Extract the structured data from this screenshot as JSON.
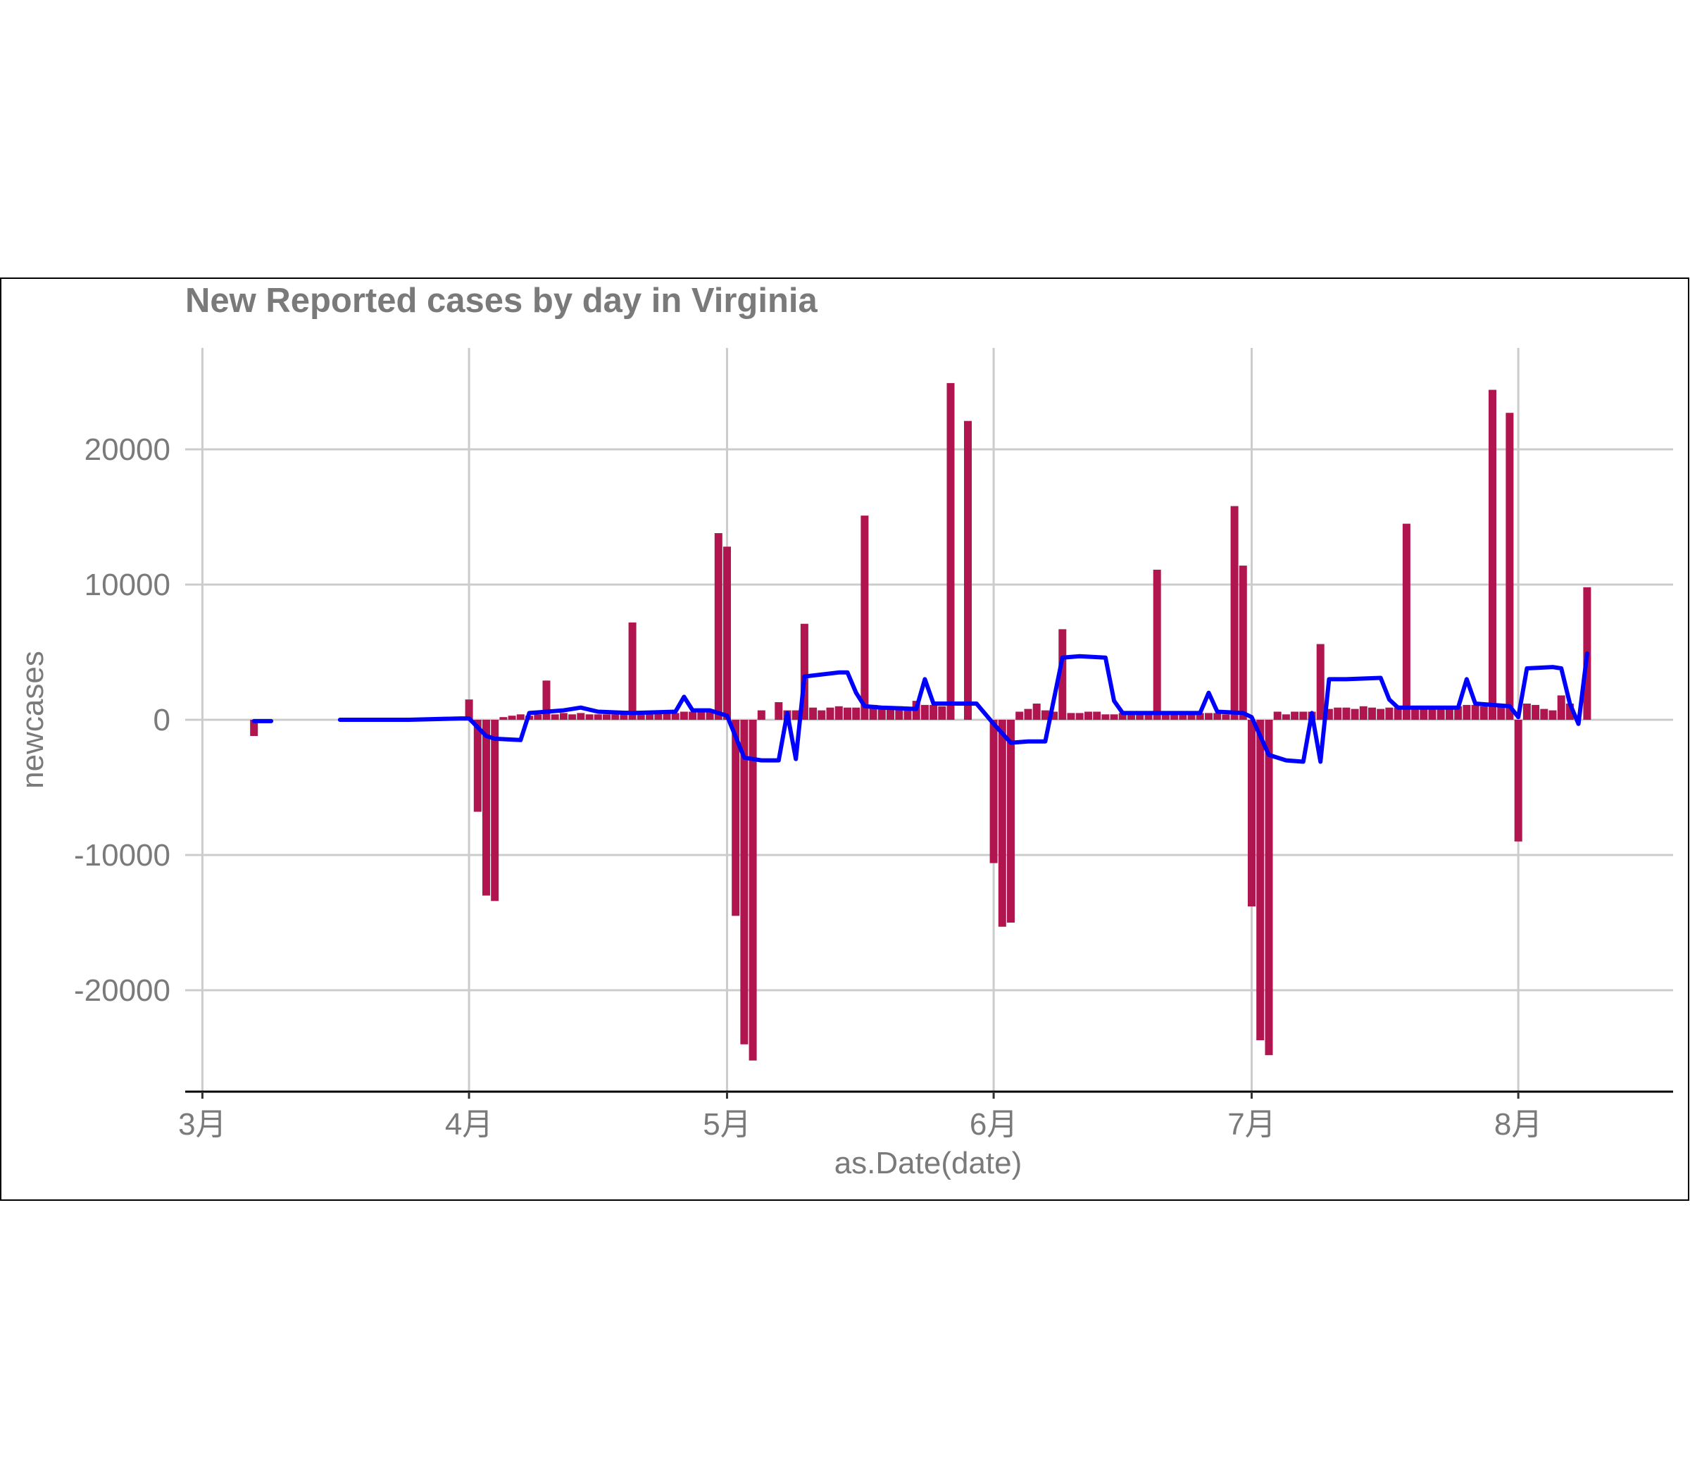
{
  "chart_data": {
    "type": "bar",
    "title": "New Reported cases by day in Virginia",
    "xlabel": "as.Date(date)",
    "ylabel": "newcases",
    "x_ticks": [
      "3月",
      "4月",
      "5月",
      "6月",
      "7月",
      "8月"
    ],
    "x_tick_dates": [
      "2020-03-01",
      "2020-04-01",
      "2020-05-01",
      "2020-06-01",
      "2020-07-01",
      "2020-08-01"
    ],
    "y_ticks": [
      20000,
      10000,
      0,
      -10000,
      -20000
    ],
    "y_tick_labels": [
      "20000",
      "10000",
      "0",
      "-10000",
      "-20000"
    ],
    "xlim": [
      "2020-02-28",
      "2020-08-19"
    ],
    "ylim": [
      -27500,
      27500
    ],
    "grid": true,
    "colors": {
      "bars": "#b0154f",
      "line": "#0000ff",
      "grid": "#cccccc",
      "text": "#7a7a7a"
    },
    "series": [
      {
        "type": "bar",
        "points": [
          [
            "2020-03-07",
            -1200
          ],
          [
            "2020-04-01",
            1500
          ],
          [
            "2020-04-02",
            -6800
          ],
          [
            "2020-04-03",
            -13000
          ],
          [
            "2020-04-04",
            -13400
          ],
          [
            "2020-04-05",
            200
          ],
          [
            "2020-04-06",
            300
          ],
          [
            "2020-04-07",
            400
          ],
          [
            "2020-04-08",
            300
          ],
          [
            "2020-04-09",
            400
          ],
          [
            "2020-04-10",
            2900
          ],
          [
            "2020-04-11",
            400
          ],
          [
            "2020-04-12",
            500
          ],
          [
            "2020-04-13",
            400
          ],
          [
            "2020-04-14",
            500
          ],
          [
            "2020-04-15",
            400
          ],
          [
            "2020-04-16",
            400
          ],
          [
            "2020-04-17",
            400
          ],
          [
            "2020-04-18",
            400
          ],
          [
            "2020-04-19",
            400
          ],
          [
            "2020-04-20",
            7200
          ],
          [
            "2020-04-21",
            400
          ],
          [
            "2020-04-22",
            400
          ],
          [
            "2020-04-23",
            500
          ],
          [
            "2020-04-24",
            500
          ],
          [
            "2020-04-25",
            500
          ],
          [
            "2020-04-26",
            600
          ],
          [
            "2020-04-27",
            600
          ],
          [
            "2020-04-28",
            600
          ],
          [
            "2020-04-29",
            600
          ],
          [
            "2020-04-30",
            13800
          ],
          [
            "2020-05-01",
            12800
          ],
          [
            "2020-05-02",
            -14500
          ],
          [
            "2020-05-03",
            -24000
          ],
          [
            "2020-05-04",
            -25200
          ],
          [
            "2020-05-05",
            700
          ],
          [
            "2020-05-07",
            1300
          ],
          [
            "2020-05-08",
            700
          ],
          [
            "2020-05-09",
            700
          ],
          [
            "2020-05-10",
            7100
          ],
          [
            "2020-05-11",
            900
          ],
          [
            "2020-05-12",
            700
          ],
          [
            "2020-05-13",
            900
          ],
          [
            "2020-05-14",
            1000
          ],
          [
            "2020-05-15",
            900
          ],
          [
            "2020-05-16",
            900
          ],
          [
            "2020-05-17",
            15100
          ],
          [
            "2020-05-18",
            1100
          ],
          [
            "2020-05-19",
            1000
          ],
          [
            "2020-05-20",
            900
          ],
          [
            "2020-05-21",
            1000
          ],
          [
            "2020-05-22",
            900
          ],
          [
            "2020-05-23",
            1400
          ],
          [
            "2020-05-24",
            1100
          ],
          [
            "2020-05-25",
            1100
          ],
          [
            "2020-05-26",
            1000
          ],
          [
            "2020-05-27",
            24900
          ],
          [
            "2020-05-29",
            22100
          ],
          [
            "2020-06-01",
            -10600
          ],
          [
            "2020-06-02",
            -15300
          ],
          [
            "2020-06-03",
            -15000
          ],
          [
            "2020-06-04",
            600
          ],
          [
            "2020-06-05",
            800
          ],
          [
            "2020-06-06",
            1200
          ],
          [
            "2020-06-07",
            700
          ],
          [
            "2020-06-08",
            600
          ],
          [
            "2020-06-09",
            6700
          ],
          [
            "2020-06-10",
            500
          ],
          [
            "2020-06-11",
            500
          ],
          [
            "2020-06-12",
            600
          ],
          [
            "2020-06-13",
            600
          ],
          [
            "2020-06-14",
            400
          ],
          [
            "2020-06-15",
            400
          ],
          [
            "2020-06-16",
            500
          ],
          [
            "2020-06-17",
            500
          ],
          [
            "2020-06-18",
            500
          ],
          [
            "2020-06-19",
            400
          ],
          [
            "2020-06-20",
            11100
          ],
          [
            "2020-06-21",
            500
          ],
          [
            "2020-06-22",
            500
          ],
          [
            "2020-06-23",
            500
          ],
          [
            "2020-06-24",
            400
          ],
          [
            "2020-06-25",
            500
          ],
          [
            "2020-06-26",
            500
          ],
          [
            "2020-06-27",
            500
          ],
          [
            "2020-06-28",
            400
          ],
          [
            "2020-06-29",
            15800
          ],
          [
            "2020-06-30",
            11400
          ],
          [
            "2020-07-01",
            -13800
          ],
          [
            "2020-07-02",
            -23700
          ],
          [
            "2020-07-03",
            -24800
          ],
          [
            "2020-07-04",
            600
          ],
          [
            "2020-07-05",
            400
          ],
          [
            "2020-07-06",
            600
          ],
          [
            "2020-07-07",
            600
          ],
          [
            "2020-07-08",
            600
          ],
          [
            "2020-07-09",
            5600
          ],
          [
            "2020-07-10",
            800
          ],
          [
            "2020-07-11",
            900
          ],
          [
            "2020-07-12",
            900
          ],
          [
            "2020-07-13",
            800
          ],
          [
            "2020-07-14",
            1000
          ],
          [
            "2020-07-15",
            900
          ],
          [
            "2020-07-16",
            800
          ],
          [
            "2020-07-17",
            900
          ],
          [
            "2020-07-18",
            900
          ],
          [
            "2020-07-19",
            14500
          ],
          [
            "2020-07-20",
            900
          ],
          [
            "2020-07-21",
            900
          ],
          [
            "2020-07-22",
            900
          ],
          [
            "2020-07-23",
            900
          ],
          [
            "2020-07-24",
            1000
          ],
          [
            "2020-07-25",
            1000
          ],
          [
            "2020-07-26",
            1100
          ],
          [
            "2020-07-27",
            1100
          ],
          [
            "2020-07-28",
            1000
          ],
          [
            "2020-07-29",
            24400
          ],
          [
            "2020-07-30",
            1000
          ],
          [
            "2020-07-31",
            22700
          ],
          [
            "2020-08-01",
            -9000
          ],
          [
            "2020-08-02",
            1200
          ],
          [
            "2020-08-03",
            1100
          ],
          [
            "2020-08-04",
            800
          ],
          [
            "2020-08-05",
            700
          ],
          [
            "2020-08-06",
            1800
          ],
          [
            "2020-08-07",
            1200
          ],
          [
            "2020-08-09",
            9800
          ]
        ]
      },
      {
        "type": "line",
        "segments": [
          [
            [
              "2020-03-07",
              -100
            ],
            [
              "2020-03-09",
              -100
            ]
          ],
          [
            [
              "2020-03-17",
              0
            ],
            [
              "2020-03-25",
              0
            ],
            [
              "2020-03-31",
              100
            ],
            [
              "2020-04-01",
              100
            ],
            [
              "2020-04-03",
              -1200
            ],
            [
              "2020-04-04",
              -1400
            ],
            [
              "2020-04-07",
              -1500
            ],
            [
              "2020-04-08",
              500
            ],
            [
              "2020-04-10",
              600
            ],
            [
              "2020-04-12",
              700
            ],
            [
              "2020-04-14",
              900
            ],
            [
              "2020-04-16",
              600
            ],
            [
              "2020-04-20",
              500
            ],
            [
              "2020-04-25",
              600
            ],
            [
              "2020-04-26",
              1700
            ],
            [
              "2020-04-27",
              700
            ],
            [
              "2020-04-29",
              700
            ],
            [
              "2020-05-01",
              300
            ],
            [
              "2020-05-03",
              -2800
            ],
            [
              "2020-05-05",
              -3000
            ],
            [
              "2020-05-07",
              -3000
            ],
            [
              "2020-05-08",
              500
            ],
            [
              "2020-05-09",
              -2900
            ],
            [
              "2020-05-10",
              3200
            ],
            [
              "2020-05-14",
              3500
            ],
            [
              "2020-05-15",
              3500
            ],
            [
              "2020-05-16",
              2000
            ],
            [
              "2020-05-17",
              1000
            ],
            [
              "2020-05-19",
              900
            ],
            [
              "2020-05-23",
              800
            ],
            [
              "2020-05-24",
              3000
            ],
            [
              "2020-05-25",
              1200
            ],
            [
              "2020-05-30",
              1200
            ],
            [
              "2020-06-01",
              -300
            ],
            [
              "2020-06-03",
              -1700
            ],
            [
              "2020-06-05",
              -1600
            ],
            [
              "2020-06-07",
              -1600
            ],
            [
              "2020-06-09",
              4600
            ],
            [
              "2020-06-11",
              4700
            ],
            [
              "2020-06-14",
              4600
            ],
            [
              "2020-06-15",
              1400
            ],
            [
              "2020-06-16",
              500
            ],
            [
              "2020-06-19",
              500
            ],
            [
              "2020-06-25",
              500
            ],
            [
              "2020-06-26",
              2000
            ],
            [
              "2020-06-27",
              600
            ],
            [
              "2020-06-30",
              500
            ],
            [
              "2020-07-01",
              200
            ],
            [
              "2020-07-03",
              -2600
            ],
            [
              "2020-07-05",
              -3000
            ],
            [
              "2020-07-07",
              -3100
            ],
            [
              "2020-07-08",
              500
            ],
            [
              "2020-07-09",
              -3100
            ],
            [
              "2020-07-10",
              3000
            ],
            [
              "2020-07-12",
              3000
            ],
            [
              "2020-07-16",
              3100
            ],
            [
              "2020-07-17",
              1500
            ],
            [
              "2020-07-18",
              900
            ],
            [
              "2020-07-21",
              900
            ],
            [
              "2020-07-25",
              900
            ],
            [
              "2020-07-26",
              3000
            ],
            [
              "2020-07-27",
              1200
            ],
            [
              "2020-07-31",
              1000
            ],
            [
              "2020-08-01",
              200
            ],
            [
              "2020-08-02",
              3800
            ],
            [
              "2020-08-05",
              3900
            ],
            [
              "2020-08-06",
              3800
            ],
            [
              "2020-08-07",
              1200
            ],
            [
              "2020-08-08",
              -300
            ],
            [
              "2020-08-09",
              4900
            ]
          ]
        ]
      }
    ]
  }
}
